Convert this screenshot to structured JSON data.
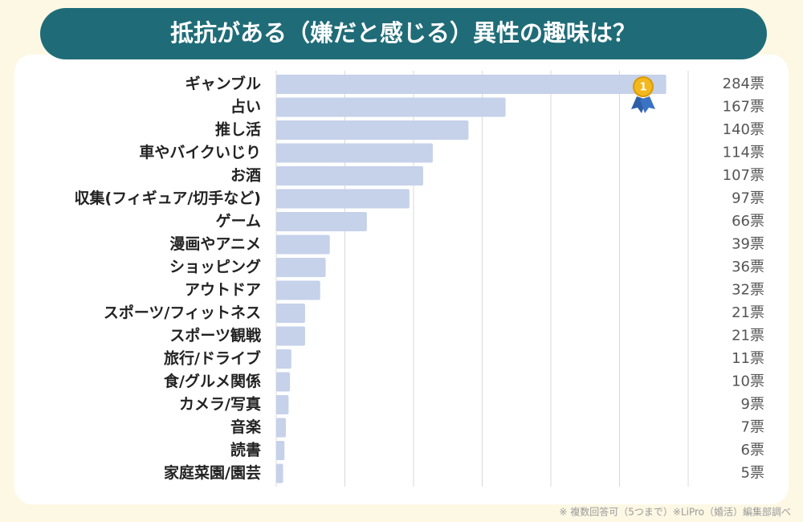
{
  "chart_data": {
    "type": "bar",
    "orientation": "horizontal",
    "title": "抵抗がある（嫌だと感じる）異性の趣味は？",
    "categories": [
      "ギャンブル",
      "占い",
      "推し活",
      "車やバイクいじり",
      "お酒",
      "収集(フィギュア/切手など)",
      "ゲーム",
      "漫画やアニメ",
      "ショッピング",
      "アウトドア",
      "スポーツ/フィットネス",
      "スポーツ観戦",
      "旅行/ドライブ",
      "食/グルメ関係",
      "カメラ/写真",
      "音楽",
      "読書",
      "家庭菜園/園芸"
    ],
    "values": [
      284,
      167,
      140,
      114,
      107,
      97,
      66,
      39,
      36,
      32,
      21,
      21,
      11,
      10,
      9,
      7,
      6,
      5
    ],
    "value_labels": [
      "284票",
      "167票",
      "140票",
      "114票",
      "107票",
      "97票",
      "66票",
      "39票",
      "36票",
      "32票",
      "21票",
      "21票",
      "11票",
      "10票",
      "9票",
      "7票",
      "6票",
      "5票"
    ],
    "color": "#c6d1ea",
    "xlim": [
      0,
      300
    ],
    "xticks": [
      0,
      50,
      100,
      150,
      200,
      250,
      300
    ],
    "grid": true,
    "note": "※ 複数回答可（5つまで）※LiPro（婚活）編集部調べ"
  }
}
